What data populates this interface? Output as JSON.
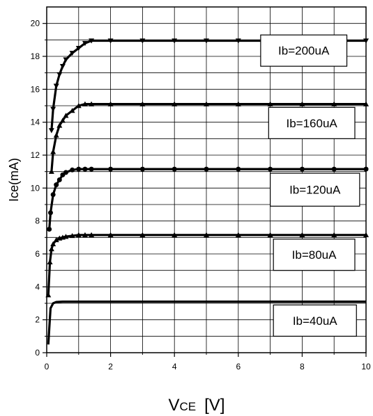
{
  "chart_data": {
    "type": "line",
    "title": "",
    "xlabel_main": "V",
    "xlabel_sub": "CE",
    "xlabel_unit": "[V]",
    "ylabel": "Ice(mA)",
    "xlim": [
      0,
      10
    ],
    "ylim": [
      0,
      21
    ],
    "x_ticks": [
      0,
      2,
      4,
      6,
      8,
      10
    ],
    "y_ticks": [
      0,
      2,
      4,
      6,
      8,
      10,
      12,
      14,
      16,
      18,
      20
    ],
    "grid": true,
    "series": [
      {
        "name": "Ib=200uA",
        "marker": "triangle-down",
        "x": [
          0.15,
          0.2,
          0.3,
          0.4,
          0.5,
          0.6,
          0.8,
          1.0,
          1.2,
          1.4,
          2,
          3,
          4,
          5,
          6,
          7,
          8,
          9,
          10
        ],
        "y": [
          13.5,
          14.8,
          16.2,
          16.9,
          17.4,
          17.8,
          18.2,
          18.5,
          18.8,
          18.95,
          18.95,
          18.95,
          18.95,
          18.95,
          18.95,
          18.95,
          18.95,
          18.95,
          18.95
        ]
      },
      {
        "name": "Ib=160uA",
        "marker": "triangle-up",
        "x": [
          0.15,
          0.2,
          0.3,
          0.4,
          0.5,
          0.6,
          0.8,
          1.0,
          1.2,
          1.4,
          2,
          3,
          4,
          5,
          6,
          7,
          8,
          9,
          10
        ],
        "y": [
          11.0,
          12.2,
          13.2,
          13.8,
          14.1,
          14.4,
          14.7,
          15.0,
          15.1,
          15.1,
          15.1,
          15.1,
          15.1,
          15.1,
          15.1,
          15.1,
          15.1,
          15.1,
          15.1
        ]
      },
      {
        "name": "Ib=120uA",
        "marker": "circle",
        "x": [
          0.08,
          0.12,
          0.2,
          0.3,
          0.4,
          0.5,
          0.6,
          0.8,
          1.0,
          1.2,
          1.4,
          2,
          3,
          4,
          5,
          6,
          7,
          8,
          9,
          10
        ],
        "y": [
          7.5,
          8.5,
          9.6,
          10.2,
          10.5,
          10.8,
          10.95,
          11.1,
          11.15,
          11.15,
          11.15,
          11.15,
          11.15,
          11.15,
          11.15,
          11.15,
          11.15,
          11.15,
          11.15,
          11.15
        ]
      },
      {
        "name": "Ib=80uA",
        "marker": "triangle-up",
        "x": [
          0.05,
          0.1,
          0.15,
          0.2,
          0.3,
          0.4,
          0.5,
          0.6,
          0.8,
          1.0,
          1.2,
          1.4,
          2,
          3,
          4,
          5,
          6,
          7,
          8,
          9,
          10
        ],
        "y": [
          3.5,
          5.5,
          6.3,
          6.6,
          6.85,
          6.95,
          7.0,
          7.05,
          7.1,
          7.15,
          7.15,
          7.15,
          7.15,
          7.15,
          7.15,
          7.15,
          7.15,
          7.15,
          7.15,
          7.15,
          7.15
        ]
      },
      {
        "name": "Ib=40uA",
        "marker": "none",
        "x": [
          0.05,
          0.08,
          0.12,
          0.2,
          0.3,
          0.5,
          1,
          2,
          4,
          6,
          8,
          10
        ],
        "y": [
          0.5,
          1.5,
          2.7,
          3.0,
          3.08,
          3.1,
          3.1,
          3.1,
          3.1,
          3.1,
          3.1,
          3.1
        ]
      }
    ],
    "legend": [
      {
        "label": "Ib=200uA",
        "x0": 6.7,
        "x1": 9.4,
        "y_top": 19.3,
        "y_bot": 17.4
      },
      {
        "label": "Ib=160uA",
        "x0": 6.95,
        "x1": 9.65,
        "y_top": 14.9,
        "y_bot": 13.0
      },
      {
        "label": "Ib=120uA",
        "x0": 7.0,
        "x1": 9.8,
        "y_top": 10.9,
        "y_bot": 8.9
      },
      {
        "label": "Ib=80uA",
        "x0": 7.1,
        "x1": 9.65,
        "y_top": 6.9,
        "y_bot": 5.0
      },
      {
        "label": "Ib=40uA",
        "x0": 7.1,
        "x1": 9.7,
        "y_top": 2.9,
        "y_bot": 1.0
      }
    ]
  }
}
